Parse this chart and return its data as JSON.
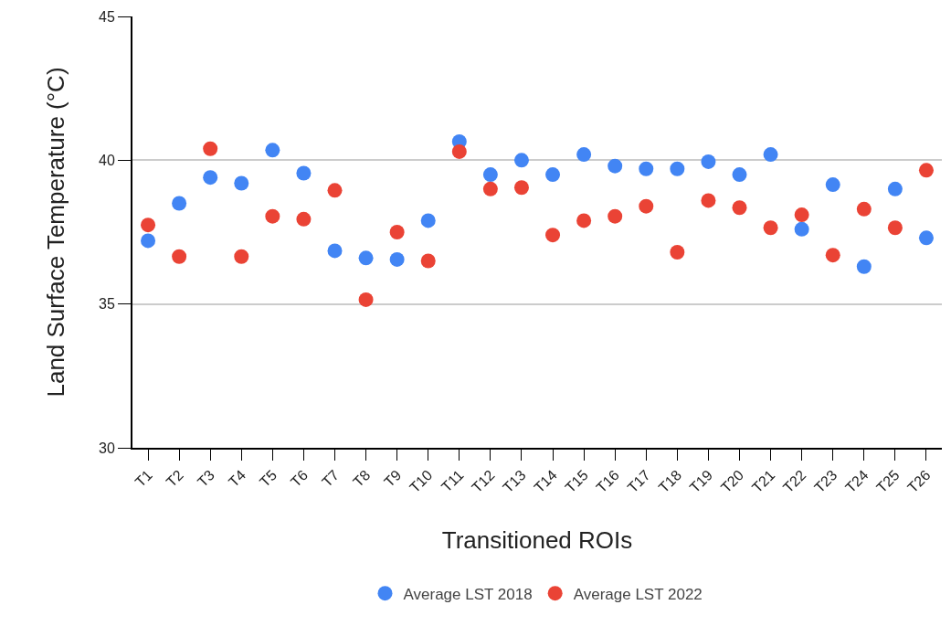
{
  "chart_data": {
    "type": "scatter",
    "xlabel": "Transitioned ROIs",
    "ylabel": "Land Surface Temperature (°C)",
    "categories": [
      "T1",
      "T2",
      "T3",
      "T4",
      "T5",
      "T6",
      "T7",
      "T8",
      "T9",
      "T10",
      "T11",
      "T12",
      "T13",
      "T14",
      "T15",
      "T16",
      "T17",
      "T18",
      "T19",
      "T20",
      "T21",
      "T22",
      "T23",
      "T24",
      "T25",
      "T26"
    ],
    "series": [
      {
        "name": "Average LST 2018",
        "color": "#4285f4",
        "values": [
          37.2,
          38.5,
          39.4,
          39.2,
          40.35,
          39.55,
          36.85,
          36.6,
          36.55,
          37.9,
          40.65,
          39.5,
          40.0,
          39.5,
          40.2,
          39.8,
          39.7,
          39.7,
          39.95,
          39.5,
          40.2,
          37.6,
          39.15,
          36.3,
          39.0,
          37.3
        ]
      },
      {
        "name": "Average LST 2022",
        "color": "#ea4335",
        "values": [
          37.75,
          36.65,
          40.4,
          36.65,
          38.05,
          37.95,
          38.95,
          35.15,
          37.5,
          36.5,
          40.3,
          39.0,
          39.05,
          37.4,
          37.9,
          38.05,
          38.4,
          36.8,
          38.6,
          38.35,
          37.65,
          38.1,
          36.7,
          38.3,
          37.65,
          39.65
        ]
      }
    ],
    "ylim": [
      30,
      45
    ],
    "yticks": [
      30,
      35,
      40,
      45
    ],
    "grid": "y",
    "legend": "bottom",
    "marker": "circle"
  }
}
